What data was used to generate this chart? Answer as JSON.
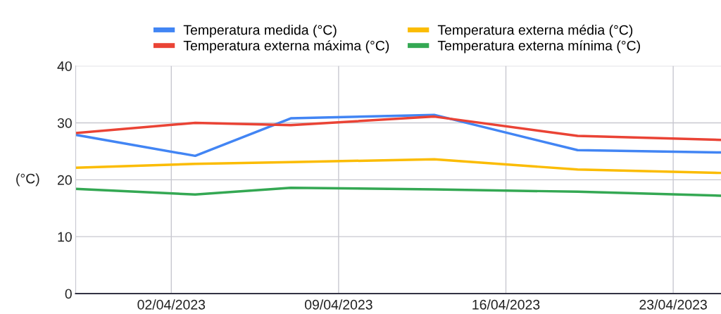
{
  "chart_data": {
    "type": "line",
    "ylabel": "(°C)",
    "x": [
      "2023-03-29",
      "2023-04-03",
      "2023-04-07",
      "2023-04-13",
      "2023-04-19",
      "2023-04-25"
    ],
    "series": [
      {
        "name": "Temperatura medida (°C)",
        "color": "#4285f4",
        "values": [
          27.9,
          24.2,
          30.8,
          31.4,
          25.2,
          24.8
        ]
      },
      {
        "name": "Temperatura externa máxima (°C)",
        "color": "#ea4335",
        "values": [
          28.2,
          30.0,
          29.6,
          31.1,
          27.7,
          27.0
        ]
      },
      {
        "name": "Temperatura externa média (°C)",
        "color": "#fbbc04",
        "values": [
          22.1,
          22.8,
          23.1,
          23.6,
          21.8,
          21.2
        ]
      },
      {
        "name": "Temperatura externa mínima (°C)",
        "color": "#34a853",
        "values": [
          18.4,
          17.4,
          18.6,
          18.3,
          17.9,
          17.2
        ]
      }
    ],
    "xlim": [
      "2023-03-29",
      "2023-04-25"
    ],
    "xticks": [
      {
        "value": "2023-04-02",
        "label": "02/04/2023"
      },
      {
        "value": "2023-04-09",
        "label": "09/04/2023"
      },
      {
        "value": "2023-04-16",
        "label": "16/04/2023"
      },
      {
        "value": "2023-04-23",
        "label": "23/04/2023"
      }
    ],
    "ylim": [
      0,
      40
    ],
    "yticks": [
      0,
      10,
      20,
      30,
      40
    ],
    "grid": true,
    "legend": "top",
    "marker": "none",
    "line_style": "solid"
  }
}
